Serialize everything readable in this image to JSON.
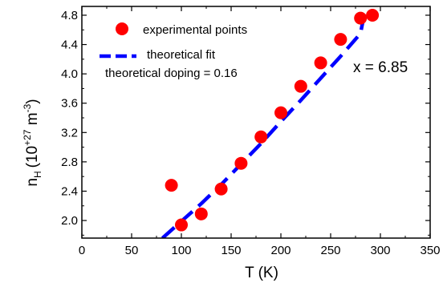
{
  "chart_data": {
    "type": "scatter",
    "xlabel": "T  (K)",
    "ylabel": "n",
    "ylabel_sub": "H",
    "ylabel_unit": "(10",
    "ylabel_exp": "+27",
    "ylabel_unit2": " m",
    "ylabel_exp2": "-3",
    "ylabel_close": ")",
    "xlim": [
      0,
      350
    ],
    "ylim": [
      1.76,
      4.92
    ],
    "x_ticks": [
      "0",
      "50",
      "100",
      "150",
      "200",
      "250",
      "300",
      "350"
    ],
    "x_tick_values": [
      0,
      50,
      100,
      150,
      200,
      250,
      300,
      350
    ],
    "y_ticks": [
      "2.0",
      "2.4",
      "2.8",
      "3.2",
      "3.6",
      "4.0",
      "4.4",
      "4.8"
    ],
    "y_tick_values": [
      2.0,
      2.4,
      2.8,
      3.2,
      3.6,
      4.0,
      4.4,
      4.8
    ],
    "grid": false,
    "legend_position": "top-left",
    "series": [
      {
        "name": "experimental  points",
        "style": "markers",
        "color": "#ff0000",
        "points": [
          {
            "x": 90,
            "y": 2.48
          },
          {
            "x": 100,
            "y": 1.94
          },
          {
            "x": 120,
            "y": 2.09
          },
          {
            "x": 140,
            "y": 2.43
          },
          {
            "x": 160,
            "y": 2.78
          },
          {
            "x": 180,
            "y": 3.14
          },
          {
            "x": 200,
            "y": 3.47
          },
          {
            "x": 220,
            "y": 3.83
          },
          {
            "x": 240,
            "y": 4.15
          },
          {
            "x": 260,
            "y": 4.47
          },
          {
            "x": 280,
            "y": 4.76
          },
          {
            "x": 292,
            "y": 4.8
          }
        ]
      },
      {
        "name": "theoretical  fit",
        "style": "dashed-line",
        "color": "#0000ff",
        "points": [
          {
            "x": 81,
            "y": 1.76
          },
          {
            "x": 100,
            "y": 1.99
          },
          {
            "x": 120,
            "y": 2.23
          },
          {
            "x": 140,
            "y": 2.49
          },
          {
            "x": 160,
            "y": 2.77
          },
          {
            "x": 180,
            "y": 3.05
          },
          {
            "x": 200,
            "y": 3.35
          },
          {
            "x": 220,
            "y": 3.64
          },
          {
            "x": 240,
            "y": 3.94
          },
          {
            "x": 260,
            "y": 4.24
          },
          {
            "x": 280,
            "y": 4.55
          },
          {
            "x": 285,
            "y": 4.9
          }
        ]
      }
    ],
    "legend_note": "theoretical doping = 0.16",
    "annotation": "x = 6.85"
  }
}
